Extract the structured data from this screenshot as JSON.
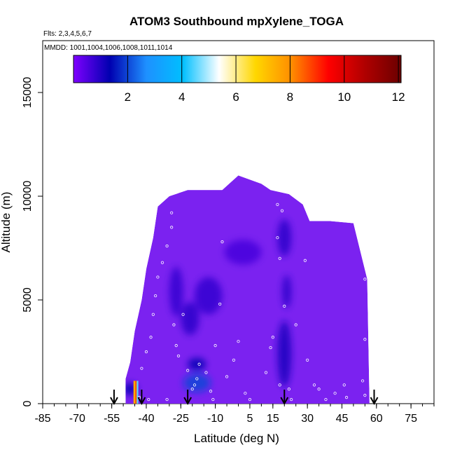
{
  "chart_data": {
    "type": "heatmap",
    "title": "ATOM3 Southbound mpXylene_TOGA",
    "subtitle": "Flts: 2,3,4,5,6,7",
    "annotation": "MMDD: 1001,1004,1006,1008,1011,1014",
    "xlabel": "Latitude (deg N)",
    "ylabel": "Altitude (m)",
    "xlim": [
      -85,
      85
    ],
    "ylim": [
      0,
      17500
    ],
    "x_ticks": [
      -85,
      -70,
      -55,
      -40,
      -25,
      -10,
      5,
      15,
      30,
      45,
      60,
      75
    ],
    "x_minor_step": 5,
    "y_ticks": [
      0,
      5000,
      10000,
      15000
    ],
    "grid": false,
    "colorbar": {
      "placement": "top",
      "range": [
        0,
        12.1
      ],
      "ticks": [
        2,
        4,
        6,
        8,
        10,
        12
      ],
      "colors": [
        "#7f00ff",
        "#0000b0",
        "#1e90ff",
        "#00bfff",
        "#ffffff",
        "#ffd700",
        "#ff8c00",
        "#ff0000",
        "#b00000",
        "#6b0000"
      ]
    },
    "field_color": "#7b22f0",
    "envelope": [
      [
        -49,
        0
      ],
      [
        -49,
        1200
      ],
      [
        -47,
        2000
      ],
      [
        -45,
        3500
      ],
      [
        -42,
        5000
      ],
      [
        -40,
        6500
      ],
      [
        -37,
        8000
      ],
      [
        -35,
        9500
      ],
      [
        -30,
        10000
      ],
      [
        -22,
        10300
      ],
      [
        -7,
        10300
      ],
      [
        -4,
        10600
      ],
      [
        0,
        11000
      ],
      [
        10,
        10600
      ],
      [
        14,
        10300
      ],
      [
        22,
        10100
      ],
      [
        28,
        9600
      ],
      [
        31,
        8800
      ],
      [
        40,
        8800
      ],
      [
        50,
        8700
      ],
      [
        56,
        6000
      ],
      [
        57,
        0
      ]
    ],
    "enhancements": [
      {
        "x": -47,
        "y": 700,
        "rx": 3,
        "ry": 300,
        "value": 1.4
      },
      {
        "x": -18,
        "y": 1000,
        "rx": 6,
        "ry": 450,
        "value": 2.0
      },
      {
        "x": -18,
        "y": 1900,
        "rx": 4,
        "ry": 300,
        "value": 1.4
      },
      {
        "x": -21,
        "y": 4100,
        "rx": 4,
        "ry": 800,
        "value": 0.9
      },
      {
        "x": -13,
        "y": 5200,
        "rx": 6,
        "ry": 900,
        "value": 0.8
      },
      {
        "x": 20,
        "y": 2400,
        "rx": 3,
        "ry": 1600,
        "value": 1.1
      },
      {
        "x": 21,
        "y": 5400,
        "rx": 2,
        "ry": 800,
        "value": 0.9
      },
      {
        "x": 20,
        "y": 8000,
        "rx": 3,
        "ry": 900,
        "value": 0.9
      },
      {
        "x": 2,
        "y": 7300,
        "rx": 8,
        "ry": 600,
        "value": 0.6
      },
      {
        "x": -27,
        "y": 5400,
        "rx": 3,
        "ry": 1200,
        "value": 0.8
      }
    ],
    "surface_patch": [
      {
        "x": -45.2,
        "value": 7.5
      },
      {
        "x": -44.5,
        "value": 8.5
      },
      {
        "x": -43.8,
        "value": 4.5
      }
    ],
    "sample_points": [
      [
        -43,
        300
      ],
      [
        -42,
        1700
      ],
      [
        -40,
        2500
      ],
      [
        -38,
        3200
      ],
      [
        -37,
        4300
      ],
      [
        -36,
        5200
      ],
      [
        -35,
        6100
      ],
      [
        -33,
        6800
      ],
      [
        -31,
        7600
      ],
      [
        -29,
        8500
      ],
      [
        -29,
        9200
      ],
      [
        -28,
        3800
      ],
      [
        -27,
        2800
      ],
      [
        -26,
        2300
      ],
      [
        -24,
        4300
      ],
      [
        -22,
        1600
      ],
      [
        -20,
        700
      ],
      [
        -19,
        900
      ],
      [
        -18,
        1200
      ],
      [
        -17,
        1900
      ],
      [
        -14,
        1500
      ],
      [
        -12,
        600
      ],
      [
        -10,
        2800
      ],
      [
        -7,
        7800
      ],
      [
        -8,
        4800
      ],
      [
        -5,
        1300
      ],
      [
        -2,
        2100
      ],
      [
        0,
        3000
      ],
      [
        3,
        500
      ],
      [
        5,
        200
      ],
      [
        12,
        1500
      ],
      [
        14,
        2700
      ],
      [
        15,
        3200
      ],
      [
        17,
        9600
      ],
      [
        17,
        8000
      ],
      [
        18,
        7000
      ],
      [
        18,
        900
      ],
      [
        19,
        9300
      ],
      [
        20,
        4700
      ],
      [
        22,
        700
      ],
      [
        23,
        200
      ],
      [
        27,
        9800
      ],
      [
        29,
        6900
      ],
      [
        33,
        900
      ],
      [
        35,
        700
      ],
      [
        38,
        200
      ],
      [
        42,
        500
      ],
      [
        46,
        900
      ],
      [
        47,
        300
      ],
      [
        54,
        8200
      ],
      [
        55,
        6000
      ],
      [
        55,
        3100
      ],
      [
        55,
        400
      ],
      [
        54,
        1100
      ],
      [
        -11,
        200
      ],
      [
        -31,
        200
      ],
      [
        -39,
        200
      ],
      [
        30,
        2100
      ],
      [
        25,
        3800
      ]
    ],
    "flight_arrows_lat": [
      -54,
      -42,
      -22,
      20,
      59
    ]
  }
}
